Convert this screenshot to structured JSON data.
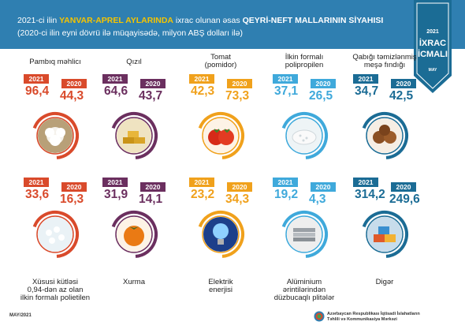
{
  "header": {
    "prefix": "2021-ci ilin ",
    "highlight": "YANVAR-APREL AYLARINDA",
    "middle": " ixrac olunan əsas ",
    "bold": "QEYRİ-NEFT MALLARININ SİYAHISI",
    "subtitle": "(2020-ci ilin eyni dövrü ilə müqayisədə, milyon ABŞ dolları ilə)"
  },
  "badge": {
    "year": "2021",
    "line1": "İXRAC",
    "line2": "İCMALI",
    "month": "MAY"
  },
  "items": [
    {
      "label": "Pambıq məhlicı",
      "y2021": "96,4",
      "y2020": "44,3",
      "tag2021": "2021",
      "tag2020": "2020",
      "color": "#d94a2b",
      "icon": "cotton-icon"
    },
    {
      "label": "Qızıl",
      "y2021": "64,6",
      "y2020": "43,7",
      "tag2021": "2021",
      "tag2020": "2020",
      "color": "#6b2f5f",
      "icon": "gold-bars-icon"
    },
    {
      "label": "Tomat\n(pomidor)",
      "y2021": "42,3",
      "y2020": "73,3",
      "tag2021": "2021",
      "tag2020": "2020",
      "color": "#f0a11c",
      "icon": "tomato-icon"
    },
    {
      "label": "İlkin formalı\npolipropilen",
      "y2021": "37,1",
      "y2020": "26,5",
      "tag2021": "2021",
      "tag2020": "2020",
      "color": "#3fa9db",
      "icon": "polypropylene-icon"
    },
    {
      "label": "Qabığı təmizlənmiş\nmeşə fındığı",
      "y2021": "34,7",
      "y2020": "42,5",
      "tag2021": "2021",
      "tag2020": "2020",
      "color": "#1b6c95",
      "icon": "hazelnut-icon"
    },
    {
      "label": "Xüsusi kütləsi\n0,94-dən az olan\nilkin formalı polietilen",
      "y2021": "33,6",
      "y2020": "16,3",
      "tag2021": "2021",
      "tag2020": "2020",
      "color": "#d94a2b",
      "icon": "polyethylene-icon"
    },
    {
      "label": "Xurma",
      "y2021": "31,9",
      "y2020": "14,1",
      "tag2021": "2021",
      "tag2020": "2020",
      "color": "#6b2f5f",
      "icon": "persimmon-icon"
    },
    {
      "label": "Elektrik\nenerjisi",
      "y2021": "23,2",
      "y2020": "34,3",
      "tag2021": "2021",
      "tag2020": "2020",
      "color": "#f0a11c",
      "icon": "light-bulb-icon"
    },
    {
      "label": "Alüminium ərintilərindən\ndüzbucaqlı plitələr",
      "y2021": "19,2",
      "y2020": "4,3",
      "tag2021": "2021",
      "tag2020": "2020",
      "color": "#3fa9db",
      "icon": "aluminium-plates-icon"
    },
    {
      "label": "Digər",
      "y2021": "314,2",
      "y2020": "249,6",
      "tag2021": "2021",
      "tag2020": "2020",
      "color": "#1b6c95",
      "icon": "containers-icon"
    }
  ],
  "footer": {
    "date": "MAY/2021",
    "org_line1": "Azərbaycan Respublikası İqtisadi İslahatların",
    "org_line2": "Təhlili və Kommunikasiya Mərkəzi"
  }
}
